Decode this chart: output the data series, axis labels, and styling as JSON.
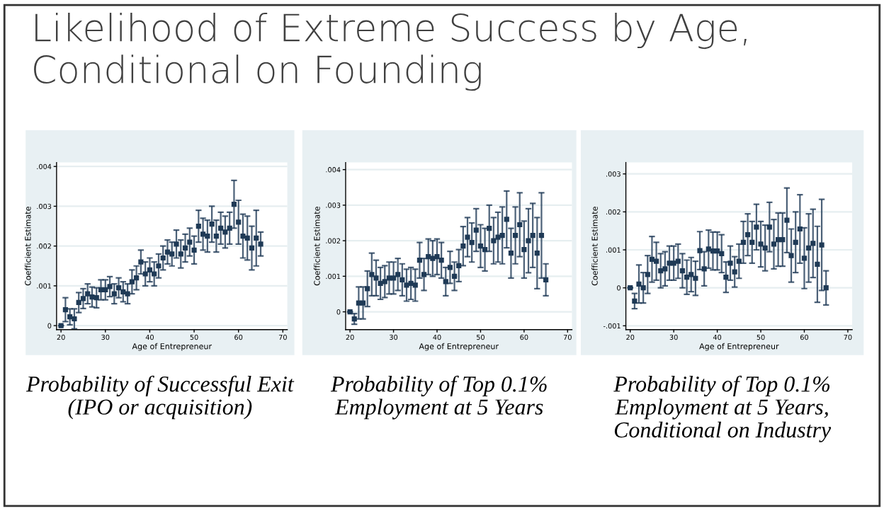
{
  "chart_data": [
    {
      "type": "scatter",
      "title": "Likelihood of Extreme Success by Age, Conditional on Founding",
      "xlabel": "Age of Entrepreneur",
      "ylabel": "Coefficient Estimate",
      "annotations": [
        "Probability of Successful Exit\n(IPO or acquisition)"
      ],
      "x": [
        20,
        21,
        22,
        23,
        24,
        25,
        26,
        27,
        28,
        29,
        30,
        31,
        32,
        33,
        34,
        35,
        36,
        37,
        38,
        39,
        40,
        41,
        42,
        43,
        44,
        45,
        46,
        47,
        48,
        49,
        50,
        51,
        52,
        53,
        54,
        55,
        56,
        57,
        58,
        59,
        60,
        61,
        62,
        63,
        64,
        65
      ],
      "series": [
        {
          "color": "#1f3a56",
          "values": [
            0,
            0.0004,
            0.00022,
            0.00017,
            0.00058,
            0.00068,
            0.0008,
            0.00072,
            0.0007,
            0.0009,
            0.0009,
            0.00098,
            0.0008,
            0.00095,
            0.00085,
            0.0008,
            0.0011,
            0.0012,
            0.0016,
            0.0013,
            0.0014,
            0.0013,
            0.0015,
            0.0017,
            0.00185,
            0.0018,
            0.00205,
            0.0018,
            0.00195,
            0.0021,
            0.0019,
            0.0025,
            0.0023,
            0.00225,
            0.00255,
            0.00225,
            0.00245,
            0.00235,
            0.00245,
            0.00305,
            0.0026,
            0.00225,
            0.0022,
            0.00195,
            0.0022,
            0.00205
          ],
          "errors": [
            null,
            0.0003,
            0.0002,
            0.00025,
            0.00025,
            0.00025,
            0.00025,
            0.00025,
            0.00025,
            0.00025,
            0.00025,
            0.00025,
            0.00025,
            0.00025,
            0.00025,
            0.00025,
            0.0003,
            0.0003,
            0.0003,
            0.0003,
            0.0003,
            0.0003,
            0.0003,
            0.0003,
            0.0003,
            0.0003,
            0.00035,
            0.00035,
            0.00035,
            0.00035,
            0.00035,
            0.0004,
            0.0004,
            0.0004,
            0.00045,
            0.0004,
            0.0004,
            0.0004,
            0.0004,
            0.0006,
            0.00055,
            0.00055,
            0.00055,
            0.00055,
            0.0007,
            0.0003
          ]
        }
      ],
      "marker": "square",
      "grid": "y",
      "xlim": [
        19,
        71
      ],
      "xticks": [
        20,
        30,
        40,
        50,
        60,
        70
      ],
      "ylim": [
        -0.0001,
        0.0041
      ],
      "yticks": [
        {
          "value": 0,
          "label": "0"
        },
        {
          "value": 0.001,
          "label": ".001"
        },
        {
          "value": 0.002,
          "label": ".002"
        },
        {
          "value": 0.003,
          "label": ".003"
        },
        {
          "value": 0.004,
          "label": ".004"
        }
      ]
    },
    {
      "type": "scatter",
      "xlabel": "Age of Entrepreneur",
      "ylabel": "Coefficient Estimate",
      "annotations": [
        "Probability of Top 0.1%\nEmployment at 5 Years"
      ],
      "x": [
        20,
        21,
        22,
        23,
        24,
        25,
        26,
        27,
        28,
        29,
        30,
        31,
        32,
        33,
        34,
        35,
        36,
        37,
        38,
        39,
        40,
        41,
        42,
        43,
        44,
        45,
        46,
        47,
        48,
        49,
        50,
        51,
        52,
        53,
        54,
        55,
        56,
        57,
        58,
        59,
        60,
        61,
        62,
        63,
        64,
        65
      ],
      "series": [
        {
          "color": "#1f3a56",
          "values": [
            0,
            -0.0002,
            0.00025,
            0.00025,
            0.00065,
            0.00105,
            0.00095,
            0.0008,
            0.00085,
            0.00095,
            0.00095,
            0.00105,
            0.0009,
            0.00075,
            0.0008,
            0.00075,
            0.00145,
            0.00105,
            0.00155,
            0.0015,
            0.00155,
            0.00145,
            0.00085,
            0.00125,
            0.001,
            0.0013,
            0.00185,
            0.0021,
            0.00195,
            0.0023,
            0.00185,
            0.00175,
            0.00235,
            0.002,
            0.0021,
            0.00215,
            0.0026,
            0.00165,
            0.00215,
            0.00245,
            0.00175,
            0.002,
            0.00215,
            0.00165,
            0.00215,
            0.0009
          ],
          "errors": [
            null,
            0.00015,
            0.00045,
            0.00045,
            0.0005,
            0.0006,
            0.0005,
            0.00045,
            0.00045,
            0.00045,
            0.00045,
            0.00045,
            0.00045,
            0.00045,
            0.00045,
            0.00045,
            0.0005,
            0.00045,
            0.0005,
            0.0005,
            0.0005,
            0.0005,
            0.0004,
            0.00045,
            0.0004,
            0.00045,
            0.00055,
            0.00055,
            0.00055,
            0.0006,
            0.0006,
            0.0006,
            0.00065,
            0.00065,
            0.0007,
            0.0008,
            0.0008,
            0.0007,
            0.0008,
            0.0009,
            0.0008,
            0.0009,
            0.0009,
            0.001,
            0.0012,
            0.00045
          ]
        }
      ],
      "marker": "square",
      "grid": "y",
      "xlim": [
        19,
        71
      ],
      "xticks": [
        20,
        30,
        40,
        50,
        60,
        70
      ],
      "ylim": [
        -0.0005,
        0.0042
      ],
      "yticks": [
        {
          "value": 0,
          "label": "0"
        },
        {
          "value": 0.001,
          "label": ".001"
        },
        {
          "value": 0.002,
          "label": ".002"
        },
        {
          "value": 0.003,
          "label": ".003"
        },
        {
          "value": 0.004,
          "label": ".004"
        }
      ]
    },
    {
      "type": "scatter",
      "xlabel": "Age of Entrepreneur",
      "ylabel": "Coefficient Estimate",
      "annotations": [
        "Probability of Top 0.1%\nEmployment at 5 Years,\nConditional on Industry"
      ],
      "x": [
        20,
        21,
        22,
        23,
        24,
        25,
        26,
        27,
        28,
        29,
        30,
        31,
        32,
        33,
        34,
        35,
        36,
        37,
        38,
        39,
        40,
        41,
        42,
        43,
        44,
        45,
        46,
        47,
        48,
        49,
        50,
        51,
        52,
        53,
        54,
        55,
        56,
        57,
        58,
        59,
        60,
        61,
        62,
        63,
        64,
        65
      ],
      "series": [
        {
          "color": "#1f3a56",
          "values": [
            0,
            -0.00035,
            0.0001,
            0,
            0.00035,
            0.00075,
            0.0007,
            0.00045,
            0.0005,
            0.00065,
            0.00065,
            0.0007,
            0.00045,
            0.00028,
            0.00035,
            0.00025,
            0.00098,
            0.0005,
            0.00102,
            0.00097,
            0.00097,
            0.0009,
            0.00028,
            0.00065,
            0.00042,
            0.0007,
            0.0012,
            0.0014,
            0.0012,
            0.0016,
            0.00115,
            0.00105,
            0.0016,
            0.00115,
            0.00127,
            0.00127,
            0.00178,
            0.00085,
            0.0012,
            0.00155,
            0.00078,
            0.00105,
            0.00117,
            0.00062,
            0.00113,
            0
          ],
          "errors": [
            null,
            0.0002,
            0.0005,
            0.0004,
            0.0005,
            0.0006,
            0.0005,
            0.00045,
            0.00045,
            0.00045,
            0.00045,
            0.00045,
            0.00045,
            0.00045,
            0.00045,
            0.00045,
            0.0005,
            0.00045,
            0.0005,
            0.0005,
            0.0005,
            0.0005,
            0.0004,
            0.00045,
            0.0004,
            0.00045,
            0.00055,
            0.00055,
            0.00055,
            0.0006,
            0.0006,
            0.0006,
            0.00065,
            0.00065,
            0.0007,
            0.0007,
            0.00085,
            0.0007,
            0.0008,
            0.0009,
            0.0008,
            0.0009,
            0.0009,
            0.001,
            0.0012,
            0.00045
          ]
        }
      ],
      "marker": "square",
      "grid": "y",
      "xlim": [
        19,
        71
      ],
      "xticks": [
        20,
        30,
        40,
        50,
        60,
        70
      ],
      "ylim": [
        -0.0011,
        0.0033
      ],
      "yticks": [
        {
          "value": -0.001,
          "label": "-.001"
        },
        {
          "value": 0,
          "label": "0"
        },
        {
          "value": 0.001,
          "label": ".001"
        },
        {
          "value": 0.002,
          "label": ".002"
        },
        {
          "value": 0.003,
          "label": ".003"
        }
      ]
    }
  ]
}
